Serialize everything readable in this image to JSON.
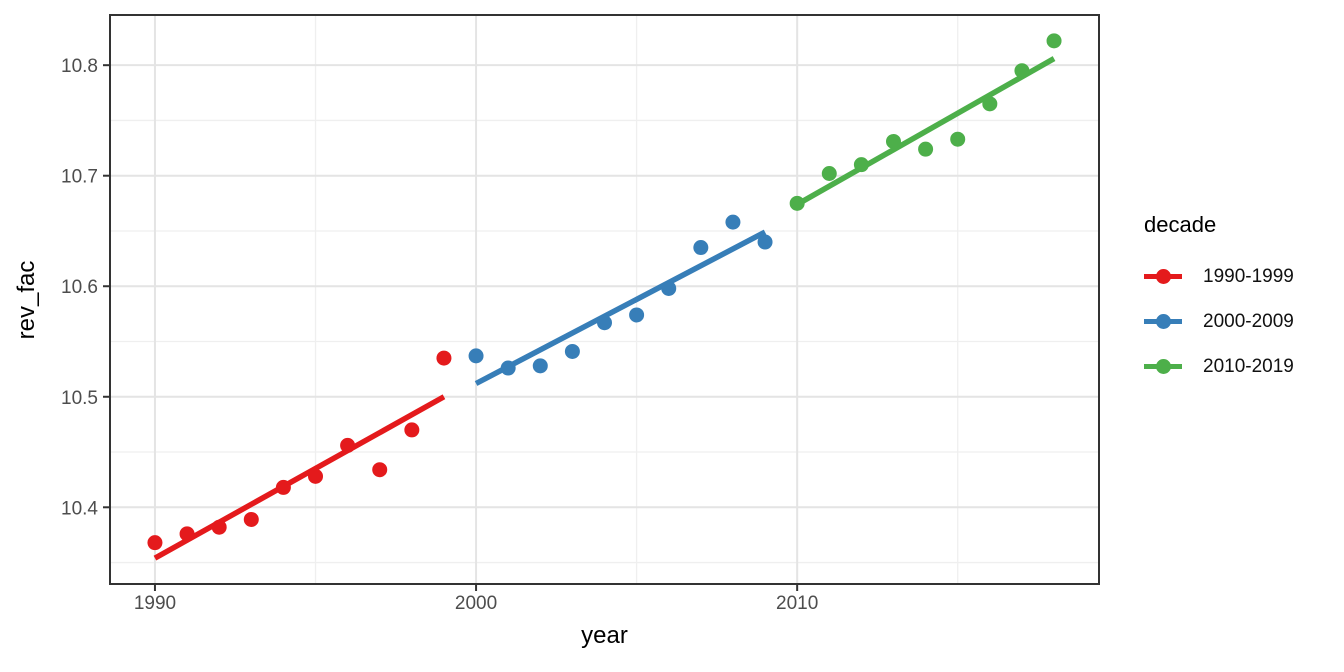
{
  "chart_data": {
    "type": "scatter",
    "title": "",
    "xlabel": "year",
    "ylabel": "rev_fac",
    "xlim": [
      1988.6,
      2019.4
    ],
    "ylim": [
      10.3306,
      10.8454
    ],
    "grid": true,
    "x_ticks": {
      "major": [
        1990,
        2000,
        2010
      ],
      "minor": [
        1995,
        2005,
        2015
      ],
      "labels": [
        "1990",
        "2000",
        "2010"
      ]
    },
    "y_ticks": {
      "major": [
        10.4,
        10.5,
        10.6,
        10.7,
        10.8
      ],
      "minor": [
        10.35,
        10.45,
        10.55,
        10.65,
        10.75
      ],
      "labels": [
        "10.4",
        "10.5",
        "10.6",
        "10.7",
        "10.8"
      ]
    },
    "legend": {
      "title": "decade",
      "position": "right"
    },
    "series": [
      {
        "name": "1990-1999",
        "color": "#E41A1C",
        "x": [
          1990,
          1991,
          1992,
          1993,
          1994,
          1995,
          1996,
          1997,
          1998,
          1999
        ],
        "y": [
          10.368,
          10.376,
          10.382,
          10.389,
          10.418,
          10.428,
          10.456,
          10.434,
          10.47,
          10.535
        ],
        "trend_line": {
          "x": [
            1990,
            1999
          ],
          "y": [
            10.354,
            10.5
          ]
        }
      },
      {
        "name": "2000-2009",
        "color": "#377EB8",
        "x": [
          2000,
          2001,
          2002,
          2003,
          2004,
          2005,
          2006,
          2007,
          2008,
          2009
        ],
        "y": [
          10.537,
          10.526,
          10.528,
          10.541,
          10.567,
          10.574,
          10.598,
          10.635,
          10.658,
          10.64
        ],
        "trend_line": {
          "x": [
            2000,
            2009
          ],
          "y": [
            10.512,
            10.649
          ]
        }
      },
      {
        "name": "2010-2019",
        "color": "#4DAF4A",
        "x": [
          2010,
          2011,
          2012,
          2013,
          2014,
          2015,
          2016,
          2017,
          2018
        ],
        "y": [
          10.675,
          10.702,
          10.71,
          10.731,
          10.724,
          10.733,
          10.765,
          10.795,
          10.822
        ],
        "trend_line": {
          "x": [
            2010,
            2018
          ],
          "y": [
            10.674,
            10.806
          ]
        }
      }
    ],
    "style_colors": {
      "grid_major": "#E4E4E4",
      "grid_minor": "#EFEFEF",
      "panel_border": "#333333",
      "tick_label": "#4D4D4D"
    }
  }
}
